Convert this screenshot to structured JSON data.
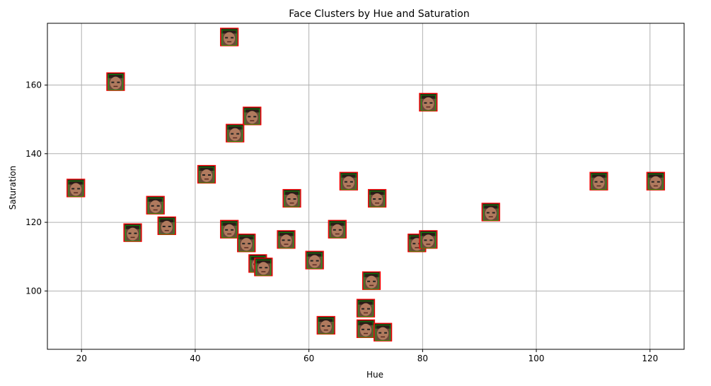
{
  "chart_data": {
    "type": "scatter",
    "title": "Face Clusters by Hue and Saturation",
    "xlabel": "Hue",
    "ylabel": "Saturation",
    "xlim": [
      14,
      126
    ],
    "ylim": [
      83,
      178
    ],
    "xticks": [
      20,
      40,
      60,
      80,
      100,
      120
    ],
    "yticks": [
      100,
      120,
      140,
      160
    ],
    "grid": true,
    "marker": "face-thumbnail",
    "points": [
      {
        "x": 19,
        "y": 130
      },
      {
        "x": 26,
        "y": 161
      },
      {
        "x": 29,
        "y": 117
      },
      {
        "x": 33,
        "y": 125
      },
      {
        "x": 35,
        "y": 119
      },
      {
        "x": 42,
        "y": 134
      },
      {
        "x": 46,
        "y": 174
      },
      {
        "x": 47,
        "y": 146
      },
      {
        "x": 50,
        "y": 151
      },
      {
        "x": 46,
        "y": 118
      },
      {
        "x": 49,
        "y": 114
      },
      {
        "x": 51,
        "y": 108
      },
      {
        "x": 52,
        "y": 107
      },
      {
        "x": 56,
        "y": 115
      },
      {
        "x": 57,
        "y": 127
      },
      {
        "x": 61,
        "y": 109
      },
      {
        "x": 63,
        "y": 90
      },
      {
        "x": 65,
        "y": 118
      },
      {
        "x": 67,
        "y": 132
      },
      {
        "x": 70,
        "y": 95
      },
      {
        "x": 70,
        "y": 89
      },
      {
        "x": 71,
        "y": 103
      },
      {
        "x": 72,
        "y": 127
      },
      {
        "x": 73,
        "y": 88
      },
      {
        "x": 79,
        "y": 114
      },
      {
        "x": 81,
        "y": 115
      },
      {
        "x": 81,
        "y": 155
      },
      {
        "x": 92,
        "y": 123
      },
      {
        "x": 111,
        "y": 132
      },
      {
        "x": 121,
        "y": 132
      }
    ]
  },
  "colors": {
    "grid": "#b0b0b0",
    "axis": "#000000",
    "marker_border": "#ff0000",
    "marker_accent": "#00c800"
  }
}
